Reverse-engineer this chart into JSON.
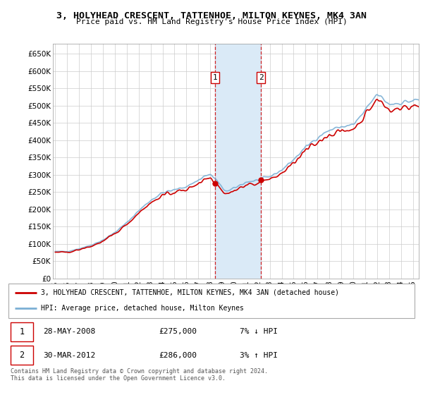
{
  "title": "3, HOLYHEAD CRESCENT, TATTENHOE, MILTON KEYNES, MK4 3AN",
  "subtitle": "Price paid vs. HM Land Registry's House Price Index (HPI)",
  "legend_line1": "3, HOLYHEAD CRESCENT, TATTENHOE, MILTON KEYNES, MK4 3AN (detached house)",
  "legend_line2": "HPI: Average price, detached house, Milton Keynes",
  "annotation1_date": "28-MAY-2008",
  "annotation1_price": "£275,000",
  "annotation1_hpi": "7% ↓ HPI",
  "annotation2_date": "30-MAR-2012",
  "annotation2_price": "£286,000",
  "annotation2_hpi": "3% ↑ HPI",
  "footer": "Contains HM Land Registry data © Crown copyright and database right 2024.\nThis data is licensed under the Open Government Licence v3.0.",
  "sale1_x": 2008.41,
  "sale1_y": 275000,
  "sale2_x": 2012.25,
  "sale2_y": 286000,
  "hpi_color": "#7bafd4",
  "price_color": "#cc0000",
  "shading_color": "#daeaf7",
  "ylim_min": 0,
  "ylim_max": 680000,
  "xlim_min": 1994.8,
  "xlim_max": 2025.5,
  "yticks": [
    0,
    50000,
    100000,
    150000,
    200000,
    250000,
    300000,
    350000,
    400000,
    450000,
    500000,
    550000,
    600000,
    650000
  ],
  "ytick_labels": [
    "£0",
    "£50K",
    "£100K",
    "£150K",
    "£200K",
    "£250K",
    "£300K",
    "£350K",
    "£400K",
    "£450K",
    "£500K",
    "£550K",
    "£600K",
    "£650K"
  ],
  "xtick_years": [
    1995,
    1996,
    1997,
    1998,
    1999,
    2000,
    2001,
    2002,
    2003,
    2004,
    2005,
    2006,
    2007,
    2008,
    2009,
    2010,
    2011,
    2012,
    2013,
    2014,
    2015,
    2016,
    2017,
    2018,
    2019,
    2020,
    2021,
    2022,
    2023,
    2024,
    2025
  ]
}
